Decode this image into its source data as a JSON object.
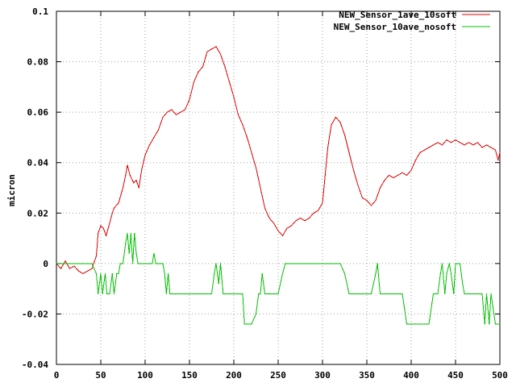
{
  "chart_data": {
    "type": "line",
    "title": "",
    "xlabel": "",
    "ylabel": "micron",
    "xlim": [
      0,
      500
    ],
    "ylim": [
      -0.04,
      0.1
    ],
    "xticks": [
      "0",
      "50",
      "100",
      "150",
      "200",
      "250",
      "300",
      "350",
      "400",
      "450",
      "500"
    ],
    "yticks": [
      "-0.04",
      "-0.02",
      "0",
      "0.02",
      "0.04",
      "0.06",
      "0.08",
      "0.1"
    ],
    "grid": true,
    "legend_position": "top-right",
    "series": [
      {
        "name": "NEW_Sensor_1ave_10soft",
        "color": "#e00000",
        "points": [
          [
            0,
            0.0
          ],
          [
            5,
            -0.002
          ],
          [
            10,
            0.001
          ],
          [
            15,
            -0.002
          ],
          [
            20,
            -0.001
          ],
          [
            25,
            -0.003
          ],
          [
            30,
            -0.004
          ],
          [
            35,
            -0.003
          ],
          [
            40,
            -0.002
          ],
          [
            43,
            0.001
          ],
          [
            45,
            0.003
          ],
          [
            47,
            0.012
          ],
          [
            50,
            0.015
          ],
          [
            53,
            0.014
          ],
          [
            56,
            0.011
          ],
          [
            60,
            0.016
          ],
          [
            63,
            0.02
          ],
          [
            65,
            0.022
          ],
          [
            70,
            0.024
          ],
          [
            75,
            0.03
          ],
          [
            78,
            0.035
          ],
          [
            80,
            0.039
          ],
          [
            83,
            0.035
          ],
          [
            87,
            0.032
          ],
          [
            90,
            0.033
          ],
          [
            93,
            0.03
          ],
          [
            96,
            0.037
          ],
          [
            100,
            0.043
          ],
          [
            105,
            0.047
          ],
          [
            110,
            0.05
          ],
          [
            115,
            0.053
          ],
          [
            120,
            0.058
          ],
          [
            125,
            0.06
          ],
          [
            130,
            0.061
          ],
          [
            135,
            0.059
          ],
          [
            140,
            0.06
          ],
          [
            145,
            0.061
          ],
          [
            150,
            0.065
          ],
          [
            155,
            0.072
          ],
          [
            160,
            0.076
          ],
          [
            165,
            0.078
          ],
          [
            170,
            0.084
          ],
          [
            175,
            0.085
          ],
          [
            180,
            0.086
          ],
          [
            185,
            0.083
          ],
          [
            190,
            0.078
          ],
          [
            195,
            0.072
          ],
          [
            200,
            0.066
          ],
          [
            205,
            0.059
          ],
          [
            210,
            0.055
          ],
          [
            215,
            0.05
          ],
          [
            220,
            0.044
          ],
          [
            225,
            0.038
          ],
          [
            230,
            0.03
          ],
          [
            235,
            0.022
          ],
          [
            240,
            0.018
          ],
          [
            245,
            0.016
          ],
          [
            250,
            0.013
          ],
          [
            255,
            0.011
          ],
          [
            260,
            0.014
          ],
          [
            265,
            0.015
          ],
          [
            270,
            0.017
          ],
          [
            275,
            0.018
          ],
          [
            280,
            0.017
          ],
          [
            285,
            0.018
          ],
          [
            290,
            0.02
          ],
          [
            295,
            0.021
          ],
          [
            300,
            0.024
          ],
          [
            303,
            0.035
          ],
          [
            306,
            0.046
          ],
          [
            310,
            0.055
          ],
          [
            315,
            0.058
          ],
          [
            320,
            0.056
          ],
          [
            325,
            0.051
          ],
          [
            330,
            0.044
          ],
          [
            335,
            0.037
          ],
          [
            340,
            0.031
          ],
          [
            345,
            0.026
          ],
          [
            350,
            0.025
          ],
          [
            355,
            0.023
          ],
          [
            360,
            0.025
          ],
          [
            365,
            0.03
          ],
          [
            370,
            0.033
          ],
          [
            375,
            0.035
          ],
          [
            380,
            0.034
          ],
          [
            385,
            0.035
          ],
          [
            390,
            0.036
          ],
          [
            395,
            0.035
          ],
          [
            400,
            0.037
          ],
          [
            405,
            0.041
          ],
          [
            410,
            0.044
          ],
          [
            415,
            0.045
          ],
          [
            420,
            0.046
          ],
          [
            425,
            0.047
          ],
          [
            430,
            0.048
          ],
          [
            435,
            0.047
          ],
          [
            440,
            0.049
          ],
          [
            445,
            0.048
          ],
          [
            450,
            0.049
          ],
          [
            455,
            0.048
          ],
          [
            460,
            0.047
          ],
          [
            465,
            0.048
          ],
          [
            470,
            0.047
          ],
          [
            475,
            0.048
          ],
          [
            480,
            0.046
          ],
          [
            485,
            0.047
          ],
          [
            490,
            0.046
          ],
          [
            495,
            0.045
          ],
          [
            498,
            0.041
          ],
          [
            500,
            0.044
          ]
        ]
      },
      {
        "name": "NEW_Sensor_10ave_nosoft",
        "color": "#00c000",
        "points": [
          [
            0,
            0.0
          ],
          [
            5,
            0.0
          ],
          [
            10,
            0.0
          ],
          [
            15,
            0.0
          ],
          [
            20,
            0.0
          ],
          [
            25,
            0.0
          ],
          [
            30,
            0.0
          ],
          [
            35,
            0.0
          ],
          [
            40,
            0.0
          ],
          [
            45,
            -0.004
          ],
          [
            47,
            -0.012
          ],
          [
            50,
            -0.004
          ],
          [
            52,
            -0.012
          ],
          [
            55,
            -0.004
          ],
          [
            57,
            -0.012
          ],
          [
            60,
            -0.012
          ],
          [
            63,
            -0.004
          ],
          [
            65,
            -0.012
          ],
          [
            68,
            -0.004
          ],
          [
            70,
            -0.004
          ],
          [
            72,
            0.0
          ],
          [
            75,
            0.0
          ],
          [
            78,
            0.008
          ],
          [
            80,
            0.012
          ],
          [
            82,
            0.004
          ],
          [
            84,
            0.012
          ],
          [
            86,
            0.0
          ],
          [
            88,
            0.012
          ],
          [
            90,
            0.004
          ],
          [
            92,
            0.0
          ],
          [
            95,
            0.0
          ],
          [
            100,
            0.0
          ],
          [
            105,
            0.0
          ],
          [
            108,
            0.0
          ],
          [
            110,
            0.004
          ],
          [
            112,
            0.0
          ],
          [
            115,
            0.0
          ],
          [
            118,
            0.0
          ],
          [
            120,
            0.0
          ],
          [
            122,
            -0.004
          ],
          [
            124,
            -0.012
          ],
          [
            126,
            -0.004
          ],
          [
            128,
            -0.012
          ],
          [
            130,
            -0.012
          ],
          [
            135,
            -0.012
          ],
          [
            140,
            -0.012
          ],
          [
            145,
            -0.012
          ],
          [
            150,
            -0.012
          ],
          [
            155,
            -0.012
          ],
          [
            160,
            -0.012
          ],
          [
            165,
            -0.012
          ],
          [
            170,
            -0.012
          ],
          [
            175,
            -0.012
          ],
          [
            178,
            -0.004
          ],
          [
            180,
            0.0
          ],
          [
            183,
            -0.008
          ],
          [
            185,
            0.0
          ],
          [
            188,
            -0.012
          ],
          [
            190,
            -0.012
          ],
          [
            195,
            -0.012
          ],
          [
            200,
            -0.012
          ],
          [
            205,
            -0.012
          ],
          [
            210,
            -0.012
          ],
          [
            212,
            -0.024
          ],
          [
            215,
            -0.024
          ],
          [
            220,
            -0.024
          ],
          [
            225,
            -0.02
          ],
          [
            228,
            -0.012
          ],
          [
            230,
            -0.012
          ],
          [
            232,
            -0.004
          ],
          [
            235,
            -0.012
          ],
          [
            238,
            -0.012
          ],
          [
            240,
            -0.012
          ],
          [
            245,
            -0.012
          ],
          [
            250,
            -0.012
          ],
          [
            255,
            -0.004
          ],
          [
            258,
            0.0
          ],
          [
            260,
            0.0
          ],
          [
            265,
            0.0
          ],
          [
            270,
            0.0
          ],
          [
            275,
            0.0
          ],
          [
            280,
            0.0
          ],
          [
            285,
            0.0
          ],
          [
            290,
            0.0
          ],
          [
            295,
            0.0
          ],
          [
            300,
            0.0
          ],
          [
            305,
            0.0
          ],
          [
            310,
            0.0
          ],
          [
            315,
            0.0
          ],
          [
            320,
            0.0
          ],
          [
            325,
            -0.004
          ],
          [
            330,
            -0.012
          ],
          [
            335,
            -0.012
          ],
          [
            340,
            -0.012
          ],
          [
            345,
            -0.012
          ],
          [
            350,
            -0.012
          ],
          [
            355,
            -0.012
          ],
          [
            360,
            -0.004
          ],
          [
            362,
            0.0
          ],
          [
            365,
            -0.012
          ],
          [
            370,
            -0.012
          ],
          [
            375,
            -0.012
          ],
          [
            380,
            -0.012
          ],
          [
            385,
            -0.012
          ],
          [
            390,
            -0.012
          ],
          [
            395,
            -0.024
          ],
          [
            400,
            -0.024
          ],
          [
            405,
            -0.024
          ],
          [
            410,
            -0.024
          ],
          [
            415,
            -0.024
          ],
          [
            420,
            -0.024
          ],
          [
            425,
            -0.012
          ],
          [
            430,
            -0.012
          ],
          [
            433,
            -0.004
          ],
          [
            435,
            0.0
          ],
          [
            438,
            -0.012
          ],
          [
            440,
            -0.004
          ],
          [
            443,
            0.0
          ],
          [
            445,
            -0.004
          ],
          [
            448,
            -0.012
          ],
          [
            450,
            0.0
          ],
          [
            455,
            0.0
          ],
          [
            458,
            -0.008
          ],
          [
            460,
            -0.012
          ],
          [
            465,
            -0.012
          ],
          [
            470,
            -0.012
          ],
          [
            475,
            -0.012
          ],
          [
            480,
            -0.012
          ],
          [
            483,
            -0.024
          ],
          [
            485,
            -0.012
          ],
          [
            488,
            -0.024
          ],
          [
            490,
            -0.012
          ],
          [
            495,
            -0.024
          ],
          [
            500,
            -0.024
          ]
        ]
      }
    ]
  }
}
